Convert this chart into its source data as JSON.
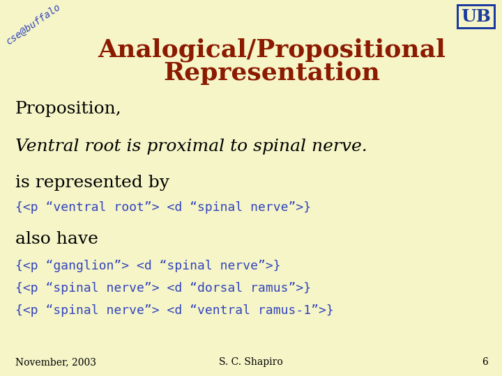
{
  "background_color": "#f5f5c8",
  "title_line1": "Analogical/Propositional",
  "title_line2": "Representation",
  "title_color": "#8B1A00",
  "title_fontsize": 26,
  "watermark_text": "cse@buffalo",
  "watermark_color": "#3344bb",
  "watermark_fontsize": 10,
  "watermark_rotation": 35,
  "body_color": "#000000",
  "code_color": "#3344bb",
  "line1": "Proposition,",
  "line1_fontsize": 18,
  "line2": "Ventral root is proximal to spinal nerve.",
  "line2_fontsize": 18,
  "line3": "is represented by",
  "line3_fontsize": 18,
  "code1": "{<p “ventral root”> <d “spinal nerve”>}",
  "code1_fontsize": 13,
  "line4": "also have",
  "line4_fontsize": 18,
  "code2": "{<p “ganglion”> <d “spinal nerve”>}",
  "code3": "{<p “spinal nerve”> <d “dorsal ramus”>}",
  "code4": "{<p “spinal nerve”> <d “ventral ramus-1”>}",
  "code_fontsize": 13,
  "footer_left": "November, 2003",
  "footer_center": "S. C. Shapiro",
  "footer_page": "6",
  "footer_color": "#000000",
  "footer_fontsize": 10,
  "ub_color_blue": "#1a3a9e",
  "ub_color_red": "#cc0000"
}
